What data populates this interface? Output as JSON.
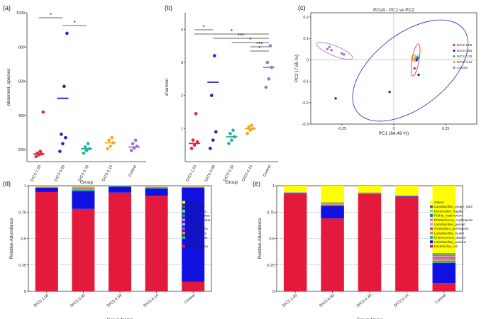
{
  "chart_data": [
    {
      "panel": "(a)",
      "type": "scatter",
      "xlabel": "Group",
      "ylabel": "observed_species",
      "categories": [
        "D/CS 1.00",
        "D/CS 0.60",
        "D/CS 0.33",
        "D/CS 0.14",
        "Control"
      ],
      "yticks": [
        "200",
        "400",
        "600",
        "800",
        "1000"
      ],
      "ylim": [
        130,
        1000
      ],
      "colors": [
        "#e0263c",
        "#2020c8",
        "#1fb3a0",
        "#f5a623",
        "#a070d0"
      ],
      "means": [
        175,
        500,
        205,
        240,
        215
      ],
      "points": [
        [
          160,
          170,
          175,
          180,
          190,
          420
        ],
        [
          190,
          235,
          270,
          290,
          570,
          880
        ],
        [
          180,
          195,
          205,
          215,
          235
        ],
        [
          205,
          220,
          240,
          255,
          270
        ],
        [
          195,
          210,
          220,
          235,
          255
        ]
      ],
      "significance": [
        {
          "from": 0,
          "to": 1,
          "label": "*"
        },
        {
          "from": 1,
          "to": 2,
          "label": "*"
        }
      ]
    },
    {
      "panel": "(b)",
      "type": "scatter",
      "xlabel": "Group",
      "ylabel": "shannon",
      "categories": [
        "D/CS 1.00",
        "D/CS 0.60",
        "D/CS 0.33",
        "D/CS 0.14",
        "Control"
      ],
      "yticks": [
        "1",
        "2",
        "3",
        "4"
      ],
      "ylim": [
        0,
        4.5
      ],
      "colors": [
        "#e0263c",
        "#2020c8",
        "#1fb3a0",
        "#f5a623",
        "#a070d0"
      ],
      "means": [
        0.55,
        2.4,
        0.75,
        1.0,
        2.85
      ],
      "points": [
        [
          0.4,
          0.5,
          0.6,
          0.65,
          1.45
        ],
        [
          0.4,
          0.65,
          0.9,
          2.0,
          3.2
        ],
        [
          0.55,
          0.65,
          0.75,
          0.85,
          0.95
        ],
        [
          0.85,
          0.95,
          1.0,
          1.05,
          1.1
        ],
        [
          2.25,
          2.5,
          2.85,
          3.0,
          3.5
        ]
      ],
      "significance": [
        {
          "from": 0,
          "to": 1,
          "label": "*"
        },
        {
          "from": 0,
          "to": 4,
          "label": "*"
        },
        {
          "from": 1,
          "to": 4,
          "label": "***"
        },
        {
          "from": 2,
          "to": 4,
          "label": "*"
        },
        {
          "from": 3,
          "to": 4,
          "label": "***"
        },
        {
          "from": 3,
          "to": 4,
          "label": "*"
        }
      ]
    },
    {
      "panel": "(c)",
      "type": "scatter",
      "title": "PCoA - PC1 vs PC2",
      "xlabel": "PC1 (84.49 %)",
      "ylabel": "PC2 (7.65 %)",
      "xticks": [
        -0.25,
        0,
        0.25
      ],
      "yticks": [
        -0.3,
        -0.2,
        -0.1,
        0,
        0.1,
        0.2
      ],
      "xlim": [
        -0.4,
        0.4
      ],
      "ylim": [
        -0.3,
        0.22
      ],
      "legend": [
        "D/CS 1.00",
        "D/CS 0.60",
        "D/CS 0.33",
        "D/CS 0.14",
        "Control"
      ],
      "colors": [
        "#e0263c",
        "#2020c8",
        "#1fb3a0",
        "#f5a623",
        "#a070d0"
      ],
      "points": [
        [
          [
            0.1,
            -0.04
          ],
          [
            0.11,
            0.0
          ],
          [
            0.105,
            0.005
          ],
          [
            0.108,
            0.01
          ]
        ],
        [
          [
            -0.28,
            -0.18
          ],
          [
            -0.02,
            -0.15
          ],
          [
            0.12,
            -0.07
          ],
          [
            0.115,
            0.01
          ],
          [
            0.11,
            0.0
          ]
        ],
        [
          [
            0.1,
            0.005
          ],
          [
            0.105,
            0.01
          ],
          [
            0.11,
            0.012
          ]
        ],
        [
          [
            0.095,
            0.0
          ],
          [
            0.1,
            0.008
          ],
          [
            0.103,
            0.012
          ]
        ],
        [
          [
            -0.32,
            0.05
          ],
          [
            -0.31,
            0.06
          ],
          [
            -0.3,
            0.045
          ],
          [
            -0.25,
            0.03
          ],
          [
            -0.24,
            0.025
          ]
        ]
      ]
    },
    {
      "panel": "(d)",
      "type": "bar",
      "stacked": true,
      "xlabel": "Group Name",
      "ylabel": "Relative Abundance",
      "categories": [
        "D/CS 1.00",
        "D/CS 0.60",
        "D/CS 0.33",
        "D/CS 0.14",
        "Control"
      ],
      "yticks": [
        "0",
        "0.25",
        "0.5",
        "0.75",
        "1"
      ],
      "ylim": [
        0,
        1
      ],
      "legend": [
        "Others",
        "Tenericutes",
        "Acidobacteria",
        "Planctomycetes",
        "Verrucomicrobia",
        "Chloroflexi",
        "Cyanobacteria",
        "Bacteroidetes",
        "Actinobacteria",
        "Firmicutes",
        "Proteobacteria"
      ],
      "series": [
        {
          "name": "Proteobacteria",
          "color": "#e41a3c",
          "values": [
            0.94,
            0.78,
            0.935,
            0.905,
            0.09
          ]
        },
        {
          "name": "Firmicutes",
          "color": "#1010e0",
          "values": [
            0.04,
            0.17,
            0.055,
            0.07,
            0.89
          ]
        },
        {
          "name": "Actinobacteria",
          "color": "#1fb3a0",
          "values": [
            0.006,
            0.015,
            0.004,
            0.01,
            0.008
          ]
        },
        {
          "name": "Bacteroidetes",
          "color": "#f28c28",
          "values": [
            0.003,
            0.01,
            0.002,
            0.004,
            0.002
          ]
        },
        {
          "name": "Cyanobacteria",
          "color": "#9b59b6",
          "values": [
            0.002,
            0.005,
            0.001,
            0.002,
            0.002
          ]
        },
        {
          "name": "Chloroflexi",
          "color": "#c8a2c8",
          "values": [
            0.001,
            0.003,
            0.001,
            0.001,
            0.001
          ]
        },
        {
          "name": "Verrucomicrobia",
          "color": "#e377c2",
          "values": [
            0.001,
            0.002,
            0.001,
            0.001,
            0.001
          ]
        },
        {
          "name": "Planctomycetes",
          "color": "#1f77b4",
          "values": [
            0.001,
            0.002,
            0.001,
            0.001,
            0.001
          ]
        },
        {
          "name": "Acidobacteria",
          "color": "#8dd35f",
          "values": [
            0.001,
            0.002,
            0.001,
            0.001,
            0.001
          ]
        },
        {
          "name": "Tenericutes",
          "color": "#556b2f",
          "values": [
            0.001,
            0.001,
            0.001,
            0.001,
            0.001
          ]
        },
        {
          "name": "Others",
          "color": "#ffff00",
          "values": [
            0.004,
            0.002,
            0.002,
            0.004,
            0.004
          ]
        }
      ]
    },
    {
      "panel": "(e)",
      "type": "bar",
      "stacked": true,
      "xlabel": "Group Name",
      "ylabel": "Relative Abundance",
      "categories": [
        "D/CS 1.00",
        "D/CS 0.60",
        "D/CS 0.33",
        "D/CS 0.14",
        "Control"
      ],
      "yticks": [
        "0",
        "0.25",
        "0.5",
        "0.75",
        "1"
      ],
      "ylim": [
        0,
        1
      ],
      "legend": [
        "Others",
        "Lactobacillus_phage_Sal3",
        "Bacteroides_fragilis",
        "Rothia_nasimurium",
        "Rhodococcus_erythropolis",
        "Lactobacillus_gasseri",
        "Clostridium_perfringens",
        "Lactobacillus_reuteri",
        "Enterococcus_durans",
        "Lactobacillus_aviarius",
        "Escherichia_coli"
      ],
      "series": [
        {
          "name": "Escherichia_coli",
          "color": "#e41a3c",
          "values": [
            0.925,
            0.69,
            0.925,
            0.895,
            0.08
          ]
        },
        {
          "name": "Lactobacillus_aviarius",
          "color": "#1010e0",
          "values": [
            0.005,
            0.12,
            0.003,
            0.005,
            0.19
          ]
        },
        {
          "name": "Enterococcus_durans",
          "color": "#1fb3a0",
          "values": [
            0.002,
            0.01,
            0.001,
            0.003,
            0.02
          ]
        },
        {
          "name": "Lactobacillus_reuteri",
          "color": "#f28c28",
          "values": [
            0.001,
            0.005,
            0.001,
            0.001,
            0.02
          ]
        },
        {
          "name": "Clostridium_perfringens",
          "color": "#9b59b6",
          "values": [
            0.001,
            0.004,
            0.001,
            0.001,
            0.012
          ]
        },
        {
          "name": "Lactobacillus_gasseri",
          "color": "#c8a2c8",
          "values": [
            0.001,
            0.003,
            0.001,
            0.001,
            0.01
          ]
        },
        {
          "name": "Rhodococcus_erythropolis",
          "color": "#e377c2",
          "values": [
            0.001,
            0.002,
            0.001,
            0.001,
            0.006
          ]
        },
        {
          "name": "Rothia_nasimurium",
          "color": "#1f77b4",
          "values": [
            0.001,
            0.002,
            0.001,
            0.001,
            0.006
          ]
        },
        {
          "name": "Bacteroides_fragilis",
          "color": "#8dd35f",
          "values": [
            0.001,
            0.004,
            0.001,
            0.001,
            0.006
          ]
        },
        {
          "name": "Lactobacillus_phage_Sal3",
          "color": "#556b2f",
          "values": [
            0.001,
            0.003,
            0.001,
            0.001,
            0.01
          ]
        },
        {
          "name": "Others",
          "color": "#ffff00",
          "values": [
            0.061,
            0.157,
            0.064,
            0.09,
            0.64
          ]
        }
      ]
    }
  ]
}
